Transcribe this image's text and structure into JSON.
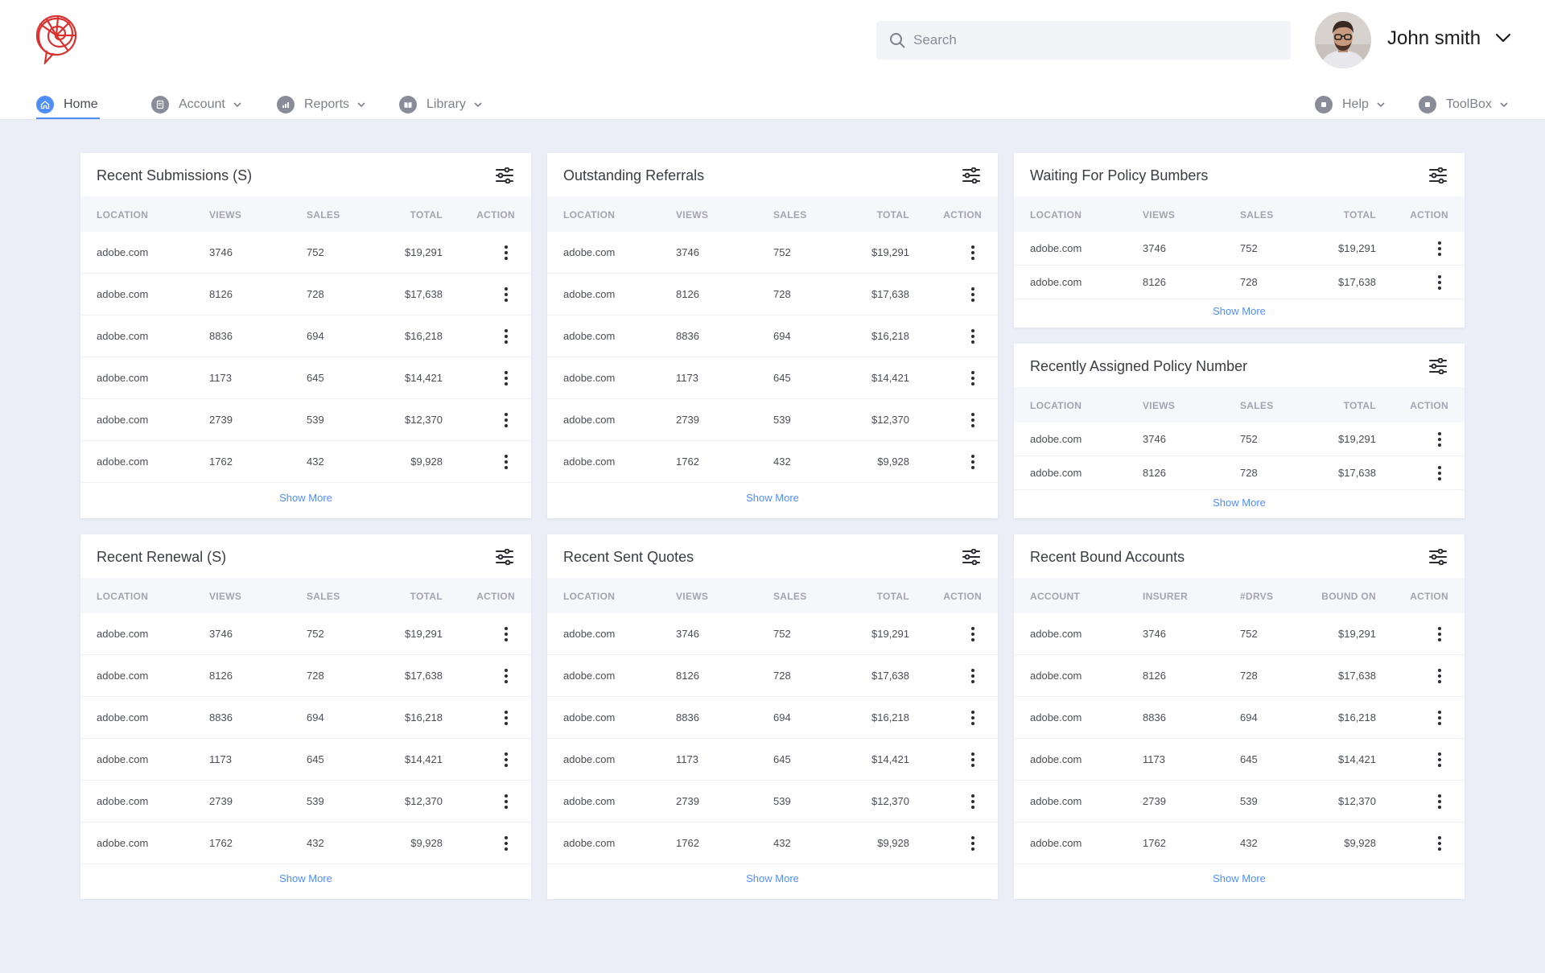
{
  "user": {
    "name": "John smith"
  },
  "search": {
    "placeholder": "Search"
  },
  "nav": {
    "left": [
      {
        "label": "Home",
        "icon": "home-icon",
        "active": true
      },
      {
        "label": "Account",
        "icon": "document-icon"
      },
      {
        "label": "Reports",
        "icon": "bar-chart-icon"
      },
      {
        "label": "Library",
        "icon": "book-icon"
      }
    ],
    "right": [
      {
        "label": "Help",
        "icon": "help-icon"
      },
      {
        "label": "ToolBox",
        "icon": "toolbox-icon"
      }
    ]
  },
  "colors": {
    "accent": "#4F8EF7",
    "background": "#EBEDF7",
    "brand": "#D9312E"
  },
  "cards": [
    {
      "title": "Recent Submissions (S)",
      "columns": [
        "LOCATION",
        "VIEWS",
        "SALES",
        "TOTAL",
        "ACTION"
      ],
      "rows": [
        [
          "adobe.com",
          "3746",
          "752",
          "$19,291"
        ],
        [
          "adobe.com",
          "8126",
          "728",
          "$17,638"
        ],
        [
          "adobe.com",
          "8836",
          "694",
          "$16,218"
        ],
        [
          "adobe.com",
          "1173",
          "645",
          "$14,421"
        ],
        [
          "adobe.com",
          "2739",
          "539",
          "$12,370"
        ],
        [
          "adobe.com",
          "1762",
          "432",
          "$9,928"
        ]
      ],
      "show_more": "Show More"
    },
    {
      "title": "Outstanding Referrals",
      "columns": [
        "LOCATION",
        "VIEWS",
        "SALES",
        "TOTAL",
        "ACTION"
      ],
      "rows": [
        [
          "adobe.com",
          "3746",
          "752",
          "$19,291"
        ],
        [
          "adobe.com",
          "8126",
          "728",
          "$17,638"
        ],
        [
          "adobe.com",
          "8836",
          "694",
          "$16,218"
        ],
        [
          "adobe.com",
          "1173",
          "645",
          "$14,421"
        ],
        [
          "adobe.com",
          "2739",
          "539",
          "$12,370"
        ],
        [
          "adobe.com",
          "1762",
          "432",
          "$9,928"
        ]
      ],
      "show_more": "Show More"
    },
    {
      "title": "Waiting For Policy Bumbers",
      "columns": [
        "LOCATION",
        "VIEWS",
        "SALES",
        "TOTAL",
        "ACTION"
      ],
      "rows": [
        [
          "adobe.com",
          "3746",
          "752",
          "$19,291"
        ],
        [
          "adobe.com",
          "8126",
          "728",
          "$17,638"
        ]
      ],
      "show_more": "Show More"
    },
    {
      "title": "Recently Assigned Policy Number",
      "columns": [
        "LOCATION",
        "VIEWS",
        "SALES",
        "TOTAL",
        "ACTION"
      ],
      "rows": [
        [
          "adobe.com",
          "3746",
          "752",
          "$19,291"
        ],
        [
          "adobe.com",
          "8126",
          "728",
          "$17,638"
        ]
      ],
      "show_more": "Show More"
    },
    {
      "title": "Recent Renewal (S)",
      "columns": [
        "LOCATION",
        "VIEWS",
        "SALES",
        "TOTAL",
        "ACTION"
      ],
      "rows": [
        [
          "adobe.com",
          "3746",
          "752",
          "$19,291"
        ],
        [
          "adobe.com",
          "8126",
          "728",
          "$17,638"
        ],
        [
          "adobe.com",
          "8836",
          "694",
          "$16,218"
        ],
        [
          "adobe.com",
          "1173",
          "645",
          "$14,421"
        ],
        [
          "adobe.com",
          "2739",
          "539",
          "$12,370"
        ],
        [
          "adobe.com",
          "1762",
          "432",
          "$9,928"
        ]
      ],
      "show_more": "Show More"
    },
    {
      "title": "Recent Sent Quotes",
      "columns": [
        "LOCATION",
        "VIEWS",
        "SALES",
        "TOTAL",
        "ACTION"
      ],
      "rows": [
        [
          "adobe.com",
          "3746",
          "752",
          "$19,291"
        ],
        [
          "adobe.com",
          "8126",
          "728",
          "$17,638"
        ],
        [
          "adobe.com",
          "8836",
          "694",
          "$16,218"
        ],
        [
          "adobe.com",
          "1173",
          "645",
          "$14,421"
        ],
        [
          "adobe.com",
          "2739",
          "539",
          "$12,370"
        ],
        [
          "adobe.com",
          "1762",
          "432",
          "$9,928"
        ]
      ],
      "show_more": "Show More"
    },
    {
      "title": "Recent Bound Accounts",
      "columns": [
        "ACCOUNT",
        "INSURER",
        "#DRVS",
        "BOUND ON",
        "ACTION"
      ],
      "rows": [
        [
          "adobe.com",
          "3746",
          "752",
          "$19,291"
        ],
        [
          "adobe.com",
          "8126",
          "728",
          "$17,638"
        ],
        [
          "adobe.com",
          "8836",
          "694",
          "$16,218"
        ],
        [
          "adobe.com",
          "1173",
          "645",
          "$14,421"
        ],
        [
          "adobe.com",
          "2739",
          "539",
          "$12,370"
        ],
        [
          "adobe.com",
          "1762",
          "432",
          "$9,928"
        ]
      ],
      "show_more": "Show More"
    }
  ]
}
